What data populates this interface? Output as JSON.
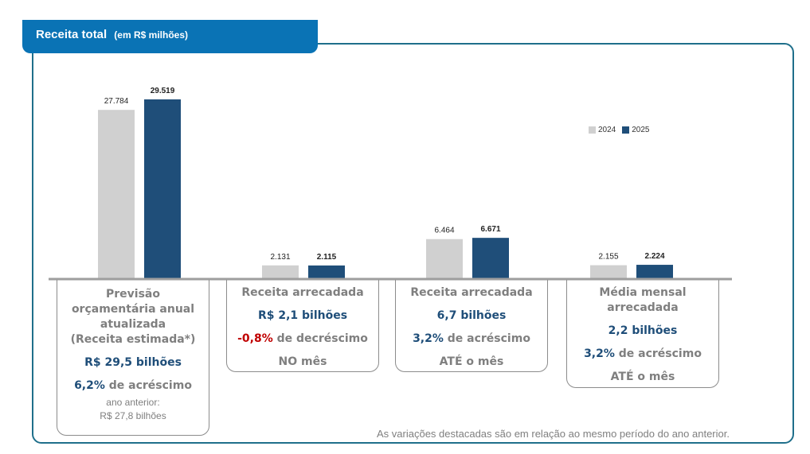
{
  "header": {
    "title": "Receita total",
    "subtitle": "(em R$ milhões)"
  },
  "legend": [
    {
      "label": "2024",
      "color": "#d0d0d0"
    },
    {
      "label": "2025",
      "color": "#1f4e79"
    }
  ],
  "chart_data": {
    "type": "bar",
    "categories": [
      "Previsão orçamentária anual atualizada",
      "Receita arrecadada NO mês",
      "Receita arrecadada ATÉ o mês",
      "Média mensal arrecadada"
    ],
    "series": [
      {
        "name": "2024",
        "color": "#d0d0d0",
        "values": [
          27784,
          2131,
          6464,
          2155
        ],
        "labels": [
          "27.784",
          "2.131",
          "6.464",
          "2.155"
        ]
      },
      {
        "name": "2025",
        "color": "#1f4e79",
        "values": [
          29519,
          2115,
          6671,
          2224
        ],
        "labels": [
          "29.519",
          "2.115",
          "6.671",
          "2.224"
        ]
      }
    ],
    "ylim": [
      0,
      29519
    ],
    "grid": false,
    "legend_position": "top-right"
  },
  "boxes": [
    {
      "title_lines": [
        "Previsão",
        "orçamentária anual",
        "atualizada",
        "(Receita estimada*)"
      ],
      "value": "R$ 29,5 bilhões",
      "pct": "6,2%",
      "pct_type": "pos",
      "pct_text": " de acréscimo",
      "extra": [
        "ano anterior:",
        "R$ 27,8 bilhões"
      ]
    },
    {
      "title_lines": [
        "Receita arrecadada"
      ],
      "value": "R$ 2,1 bilhões",
      "pct": "-0,8%",
      "pct_type": "neg",
      "pct_text": " de decréscimo",
      "period": "NO mês"
    },
    {
      "title_lines": [
        "Receita arrecadada"
      ],
      "value": "6,7 bilhões",
      "pct": "3,2%",
      "pct_type": "pos",
      "pct_text": " de acréscimo",
      "period": "ATÉ o mês"
    },
    {
      "title_lines": [
        "Média mensal",
        "arrecadada"
      ],
      "value": "2,2 bilhões",
      "pct": "3,2%",
      "pct_type": "pos",
      "pct_text": " de acréscimo",
      "period": "ATÉ o mês"
    }
  ],
  "footnote": "As variações destacadas são em relação ao mesmo período do ano anterior."
}
